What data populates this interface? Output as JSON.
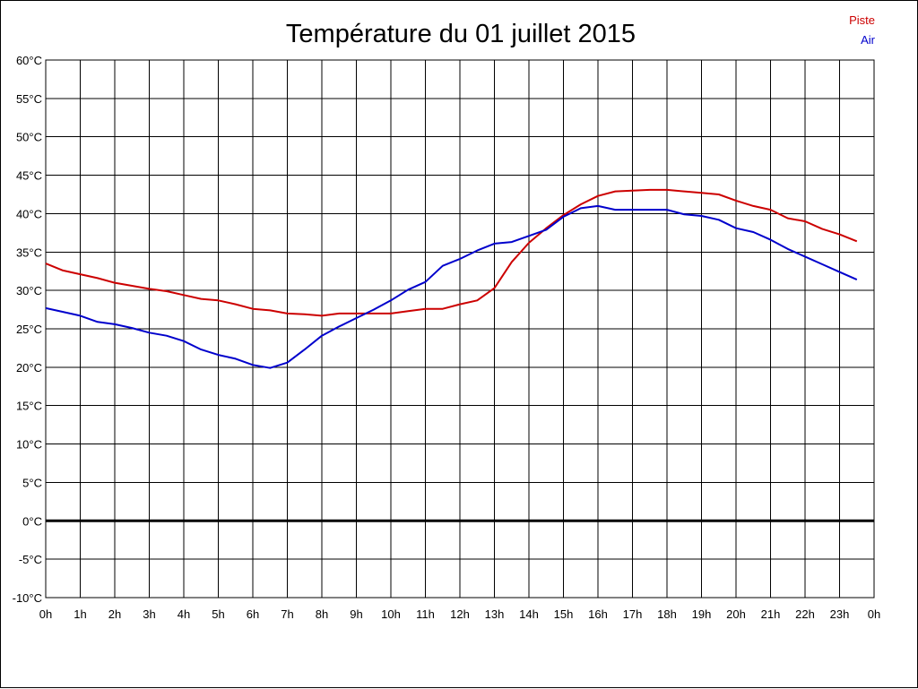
{
  "chart_data": {
    "type": "line",
    "title": "Température du 01 juillet 2015",
    "xlabel": "",
    "ylabel": "",
    "ylim": [
      -10,
      60
    ],
    "y_ticks": [
      "-10°C",
      "-5°C",
      "0°C",
      "5°C",
      "10°C",
      "15°C",
      "20°C",
      "25°C",
      "30°C",
      "35°C",
      "40°C",
      "45°C",
      "50°C",
      "55°C",
      "60°C"
    ],
    "x_ticks": [
      "0h",
      "1h",
      "2h",
      "3h",
      "4h",
      "5h",
      "6h",
      "7h",
      "8h",
      "9h",
      "10h",
      "11h",
      "12h",
      "13h",
      "14h",
      "15h",
      "16h",
      "17h",
      "18h",
      "19h",
      "20h",
      "21h",
      "22h",
      "23h",
      "0h"
    ],
    "xlim": [
      0,
      24
    ],
    "grid": true,
    "legend_position": "top-right",
    "zero_line": true,
    "series": [
      {
        "name": "Piste",
        "color": "#cc0000",
        "x": [
          0,
          0.5,
          1,
          1.5,
          2,
          2.5,
          3,
          3.5,
          4,
          4.5,
          5,
          5.5,
          6,
          6.5,
          7,
          7.5,
          8,
          8.5,
          9,
          9.5,
          10,
          10.5,
          11,
          11.5,
          12,
          12.5,
          13,
          13.5,
          14,
          14.5,
          15,
          15.5,
          16,
          16.5,
          17,
          17.5,
          18,
          18.5,
          19,
          19.5,
          20,
          20.5,
          21,
          21.5,
          22,
          22.5,
          23,
          23.5
        ],
        "values": [
          33.5,
          32.6,
          32.1,
          31.6,
          31.0,
          30.6,
          30.2,
          29.9,
          29.4,
          28.9,
          28.7,
          28.2,
          27.6,
          27.4,
          27.0,
          26.9,
          26.7,
          27.0,
          27.0,
          27.0,
          27.0,
          27.3,
          27.6,
          27.6,
          28.2,
          28.7,
          30.3,
          33.7,
          36.2,
          38.1,
          39.8,
          41.2,
          42.3,
          42.9,
          43.0,
          43.1,
          43.1,
          42.9,
          42.7,
          42.5,
          41.7,
          41.0,
          40.5,
          39.4,
          39.0,
          38.0,
          37.3,
          36.4
        ]
      },
      {
        "name": "Air",
        "color": "#0000cc",
        "x": [
          0,
          0.5,
          1,
          1.5,
          2,
          2.5,
          3,
          3.5,
          4,
          4.5,
          5,
          5.5,
          6,
          6.5,
          7,
          7.5,
          8,
          8.5,
          9,
          9.5,
          10,
          10.5,
          11,
          11.5,
          12,
          12.5,
          13,
          13.5,
          14,
          14.5,
          15,
          15.5,
          16,
          16.5,
          17,
          17.5,
          18,
          18.5,
          19,
          19.5,
          20,
          20.5,
          21,
          21.5,
          22,
          22.5,
          23,
          23.5
        ],
        "values": [
          27.7,
          27.2,
          26.7,
          25.9,
          25.6,
          25.1,
          24.5,
          24.1,
          23.4,
          22.3,
          21.6,
          21.1,
          20.3,
          19.9,
          20.6,
          22.3,
          24.1,
          25.3,
          26.4,
          27.5,
          28.7,
          30.1,
          31.1,
          33.2,
          34.1,
          35.2,
          36.1,
          36.3,
          37.1,
          37.9,
          39.6,
          40.7,
          41.0,
          40.5,
          40.5,
          40.5,
          40.5,
          39.9,
          39.7,
          39.2,
          38.1,
          37.6,
          36.6,
          35.4,
          34.4,
          33.4,
          32.4,
          31.4
        ]
      }
    ]
  }
}
